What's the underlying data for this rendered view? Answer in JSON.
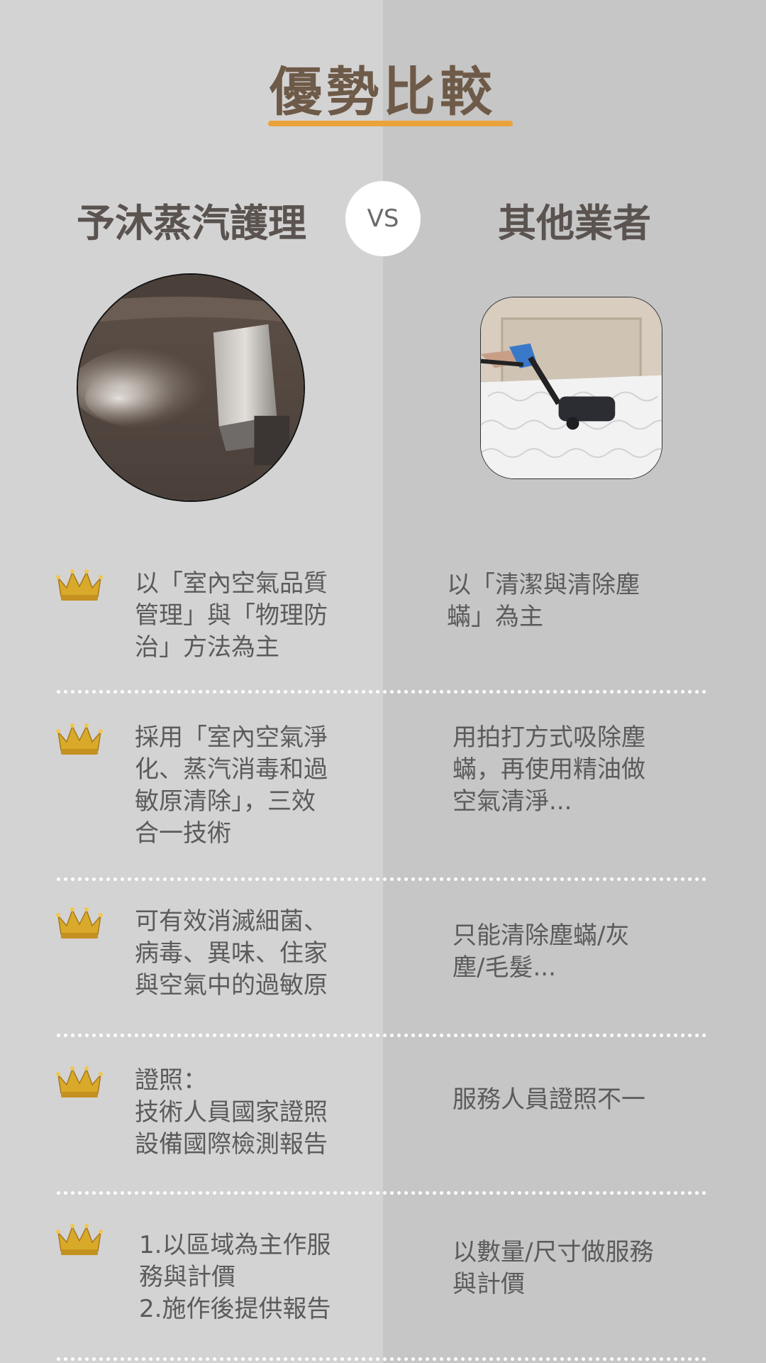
{
  "title": "優勢比較",
  "left_heading": "予沐蒸汽護理",
  "vs": "VS",
  "right_heading": "其他業者",
  "images": {
    "left": "steam-cleaning-sofa-photo",
    "right": "mattress-vacuum-photo"
  },
  "colors": {
    "title": "#6e5a48",
    "underline": "#eaa23b",
    "left_bg": "#d3d3d3",
    "right_bg": "#c6c6c6",
    "crown": "#d9a92a"
  },
  "rows": [
    {
      "left": "以「室內空氣品質\n管理」與「物理防\n治」方法為主",
      "right": "以「清潔與清除塵\n蟎」為主"
    },
    {
      "left": "採用「室內空氣淨\n化、蒸汽消毒和過\n敏原清除」，三效\n合一技術",
      "right": "用拍打方式吸除塵\n蟎，再使用精油做\n空氣清淨..."
    },
    {
      "left": "可有效消滅細菌、\n病毒、異味、住家\n與空氣中的過敏原",
      "right": "只能清除塵蟎/灰\n塵/毛髮..."
    },
    {
      "left": "證照：\n技術人員國家證照\n設備國際檢測報告",
      "right": "服務人員證照不一"
    },
    {
      "left": "1.以區域為主作服\n務與計價\n2.施作後提供報告",
      "right": "以數量/尺寸做服務\n與計價"
    }
  ]
}
